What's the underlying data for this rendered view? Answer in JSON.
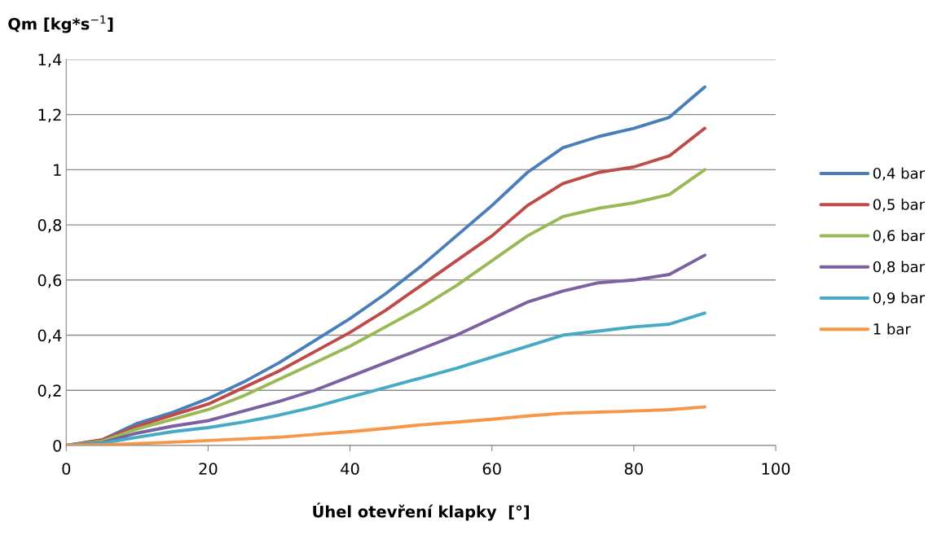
{
  "chart_data": {
    "type": "line",
    "ylabel": "Qm [kg*s$^{−1}$]",
    "xlabel": "Úhel otevření klapky  [°]",
    "x": [
      0,
      5,
      10,
      15,
      20,
      25,
      30,
      35,
      40,
      45,
      50,
      55,
      60,
      65,
      70,
      75,
      80,
      85,
      90
    ],
    "series": [
      {
        "name": "0,4 bar",
        "color": "#4a7ebb",
        "values": [
          0,
          0.02,
          0.08,
          0.12,
          0.17,
          0.23,
          0.3,
          0.38,
          0.46,
          0.55,
          0.65,
          0.76,
          0.87,
          0.99,
          1.08,
          1.12,
          1.15,
          1.19,
          1.3
        ]
      },
      {
        "name": "0,5 bar",
        "color": "#be4b48",
        "values": [
          0,
          0.02,
          0.07,
          0.11,
          0.15,
          0.21,
          0.27,
          0.34,
          0.41,
          0.49,
          0.58,
          0.67,
          0.76,
          0.87,
          0.95,
          0.99,
          1.01,
          1.05,
          1.15
        ]
      },
      {
        "name": "0,6 bar",
        "color": "#98b954",
        "values": [
          0,
          0.015,
          0.06,
          0.095,
          0.13,
          0.18,
          0.24,
          0.3,
          0.36,
          0.43,
          0.5,
          0.58,
          0.67,
          0.76,
          0.83,
          0.86,
          0.88,
          0.91,
          1.0
        ]
      },
      {
        "name": "0,8 bar",
        "color": "#7d60a0",
        "values": [
          0,
          0.01,
          0.045,
          0.07,
          0.09,
          0.125,
          0.16,
          0.2,
          0.25,
          0.3,
          0.35,
          0.4,
          0.46,
          0.52,
          0.56,
          0.59,
          0.6,
          0.62,
          0.69
        ]
      },
      {
        "name": "0,9 bar",
        "color": "#46aac5",
        "values": [
          0,
          0.008,
          0.03,
          0.05,
          0.065,
          0.085,
          0.11,
          0.14,
          0.175,
          0.21,
          0.245,
          0.28,
          0.32,
          0.36,
          0.4,
          0.415,
          0.43,
          0.44,
          0.48
        ]
      },
      {
        "name": "1 bar",
        "color": "#f79646",
        "values": [
          0,
          0.002,
          0.007,
          0.012,
          0.018,
          0.024,
          0.03,
          0.04,
          0.05,
          0.062,
          0.075,
          0.085,
          0.095,
          0.107,
          0.117,
          0.121,
          0.125,
          0.13,
          0.14
        ]
      }
    ],
    "xlim": [
      0,
      100
    ],
    "xticks": [
      0,
      20,
      40,
      60,
      80,
      100
    ],
    "ylim": [
      0,
      1.4
    ],
    "yticks": [
      0,
      {
        "value": 0.2,
        "label": "0,2"
      },
      {
        "value": 0.4,
        "label": "0,4"
      },
      {
        "value": 0.6,
        "label": "0,6"
      },
      {
        "value": 0.8,
        "label": "0,8"
      },
      1,
      {
        "value": 1.2,
        "label": "1,2"
      },
      {
        "value": 1.4,
        "label": "1,4"
      }
    ],
    "grid": "y",
    "legend": "right",
    "marker": "none",
    "line_style": "solid"
  }
}
